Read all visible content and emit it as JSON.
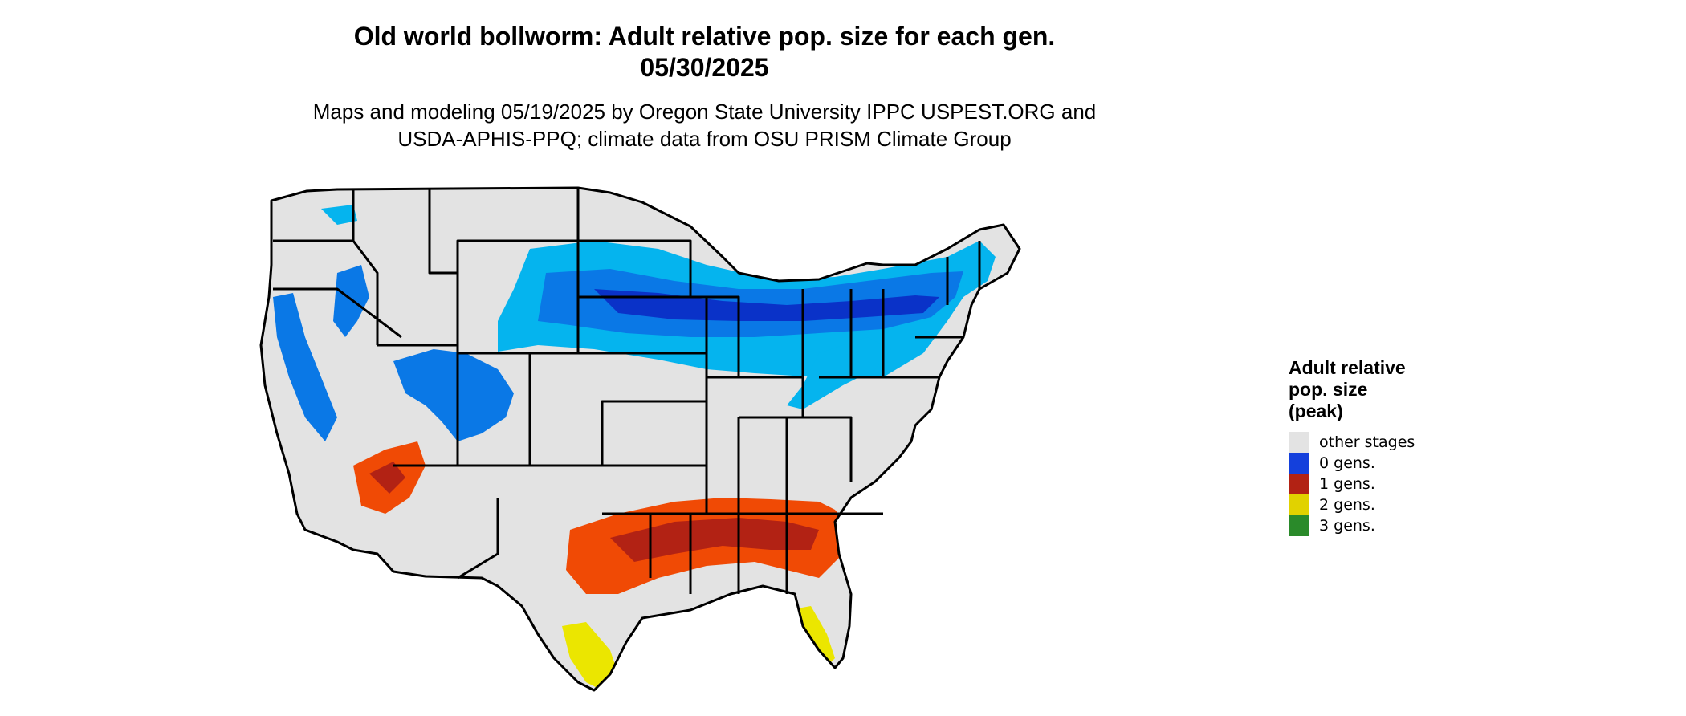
{
  "title": {
    "line1": "Old world bollworm: Adult relative pop. size for each gen.",
    "line2": "05/30/2025"
  },
  "subtitle": {
    "line1": "Maps and modeling 05/19/2025 by Oregon State University IPPC USPEST.ORG and",
    "line2": "USDA-APHIS-PPQ; climate data from OSU PRISM Climate Group"
  },
  "legend": {
    "title_lines": [
      "Adult relative",
      "pop. size",
      "(peak)"
    ],
    "items": [
      {
        "label": "other stages",
        "color": "#e3e3e3"
      },
      {
        "label": "0 gens.",
        "color": "#1440dc"
      },
      {
        "label": "1 gens.",
        "color": "#b22214"
      },
      {
        "label": "2 gens.",
        "color": "#e1d200"
      },
      {
        "label": "3 gens.",
        "color": "#2a8a2a"
      }
    ]
  },
  "colors": {
    "land": "#e3e3e3",
    "zero_gens_light": "#05b4ee",
    "zero_gens_mid": "#0a78e6",
    "zero_gens_dark": "#0a32c8",
    "one_gens_orange": "#f04a05",
    "one_gens_dark": "#b22214",
    "two_gens": "#ebe600",
    "border": "#000000"
  }
}
